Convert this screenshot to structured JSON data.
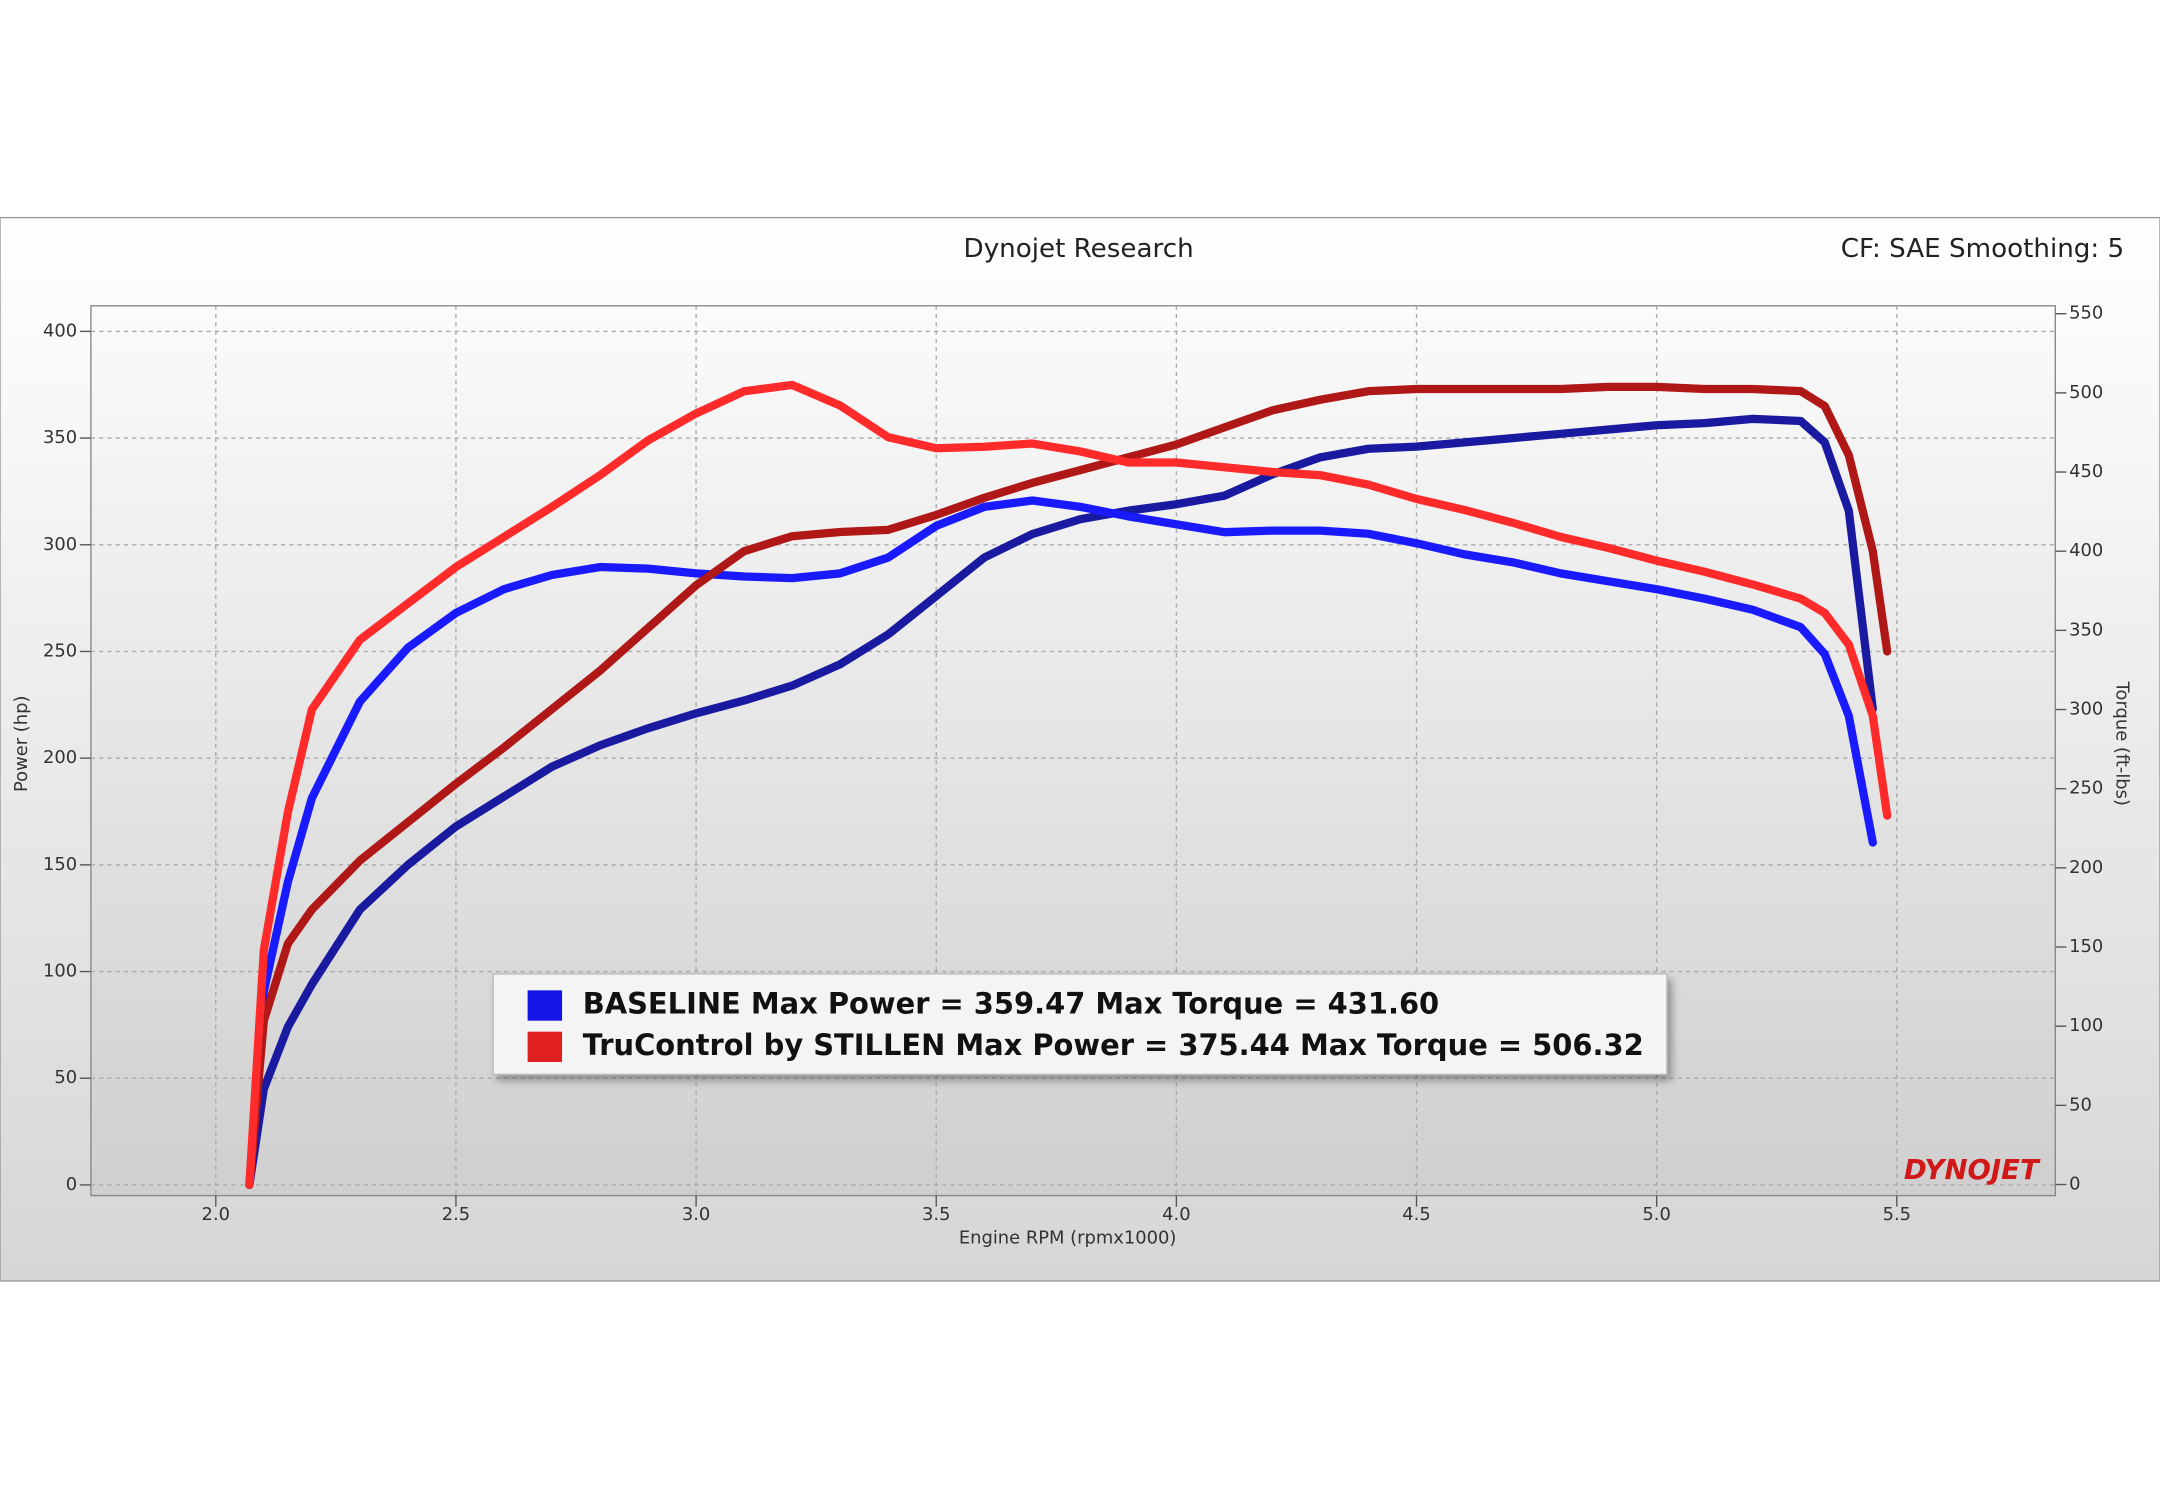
{
  "chart_data": {
    "type": "line",
    "title": "Dynojet Research",
    "subtitle": "CF: SAE Smoothing: 5",
    "xlabel": "Engine RPM (rpmx1000)",
    "ylabel": "Power (hp)",
    "y2label": "Torque (ft-lbs)",
    "logo": "DYNOJET",
    "grid": true,
    "xlim": [
      1.74,
      5.83
    ],
    "xticks": [
      {
        "value": 2,
        "label": "2.0"
      },
      2.5,
      {
        "value": 3,
        "label": "3.0"
      },
      3.5,
      {
        "value": 4,
        "label": "4.0"
      },
      4.5,
      {
        "value": 5,
        "label": "5.0"
      },
      5.5
    ],
    "ylim": [
      -5,
      412
    ],
    "yticks": [
      0,
      50,
      100,
      150,
      200,
      250,
      300,
      350,
      400
    ],
    "y2lim": [
      -7,
      555
    ],
    "y2ticks": [
      0,
      50,
      100,
      150,
      200,
      250,
      300,
      350,
      400,
      450,
      500,
      550
    ],
    "legend": [
      {
        "label": "BASELINE Max Power = 359.47 Max Torque = 431.60",
        "color": "#1414e6"
      },
      {
        "label": "TruControl by STILLEN Max Power = 375.44 Max Torque = 506.32",
        "color": "#e02020"
      }
    ],
    "x": [
      2.07,
      2.1,
      2.15,
      2.2,
      2.3,
      2.4,
      2.5,
      2.6,
      2.7,
      2.8,
      2.9,
      3.0,
      3.1,
      3.2,
      3.3,
      3.4,
      3.5,
      3.6,
      3.7,
      3.8,
      3.9,
      4.0,
      4.1,
      4.2,
      4.3,
      4.4,
      4.5,
      4.6,
      4.7,
      4.8,
      4.9,
      5.0,
      5.1,
      5.2,
      5.3,
      5.35,
      5.4,
      5.45,
      5.48
    ],
    "series": [
      {
        "color": "#1a1aa0",
        "axis": "y",
        "values": [
          0,
          45,
          74,
          94,
          129,
          150,
          168,
          182,
          196,
          206,
          214,
          221,
          227,
          234,
          244,
          258,
          276,
          294,
          305,
          312,
          316,
          319,
          323,
          333,
          341,
          345,
          346,
          348,
          350,
          352,
          354,
          356,
          357,
          359,
          358,
          348,
          316,
          223,
          null
        ]
      },
      {
        "color": "#1a1aff",
        "axis": "y2",
        "values": [
          0,
          122,
          191,
          244,
          305,
          339,
          361,
          376,
          385,
          390,
          389,
          386,
          384,
          383,
          386,
          396,
          416,
          428,
          432,
          428,
          422,
          417,
          412,
          413,
          413,
          411,
          405,
          398,
          393,
          386,
          381,
          376,
          370,
          363,
          352,
          335,
          296,
          216,
          null
        ]
      },
      {
        "color": "#b01818",
        "axis": "y",
        "values": [
          0,
          77,
          113,
          129,
          152,
          170,
          188,
          205,
          223,
          241,
          261,
          281,
          297,
          304,
          306,
          307,
          314,
          322,
          329,
          335,
          341,
          347,
          355,
          363,
          368,
          372,
          373,
          373,
          373,
          373,
          374,
          374,
          373,
          373,
          372,
          365,
          342,
          297,
          250
        ]
      },
      {
        "color": "#ff2b2b",
        "axis": "y2",
        "values": [
          0,
          148,
          235,
          300,
          344,
          367,
          390,
          409,
          428,
          448,
          470,
          487,
          501,
          505,
          492,
          472,
          465,
          466,
          468,
          463,
          456,
          456,
          453,
          450,
          448,
          442,
          433,
          426,
          418,
          409,
          402,
          394,
          387,
          379,
          370,
          361,
          341,
          296,
          233
        ]
      }
    ]
  }
}
